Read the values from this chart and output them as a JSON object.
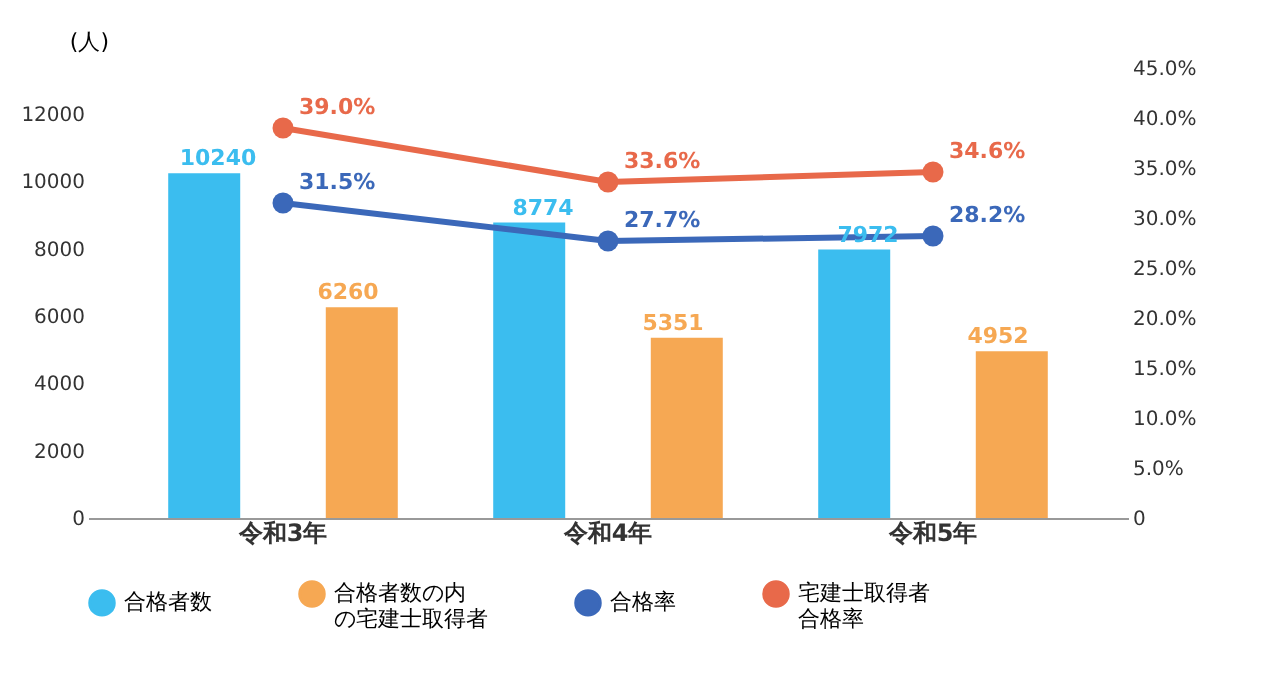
{
  "chart_data": {
    "type": "bar",
    "ylabel": "(人)",
    "categories": [
      "令和3年",
      "令和4年",
      "令和5年"
    ],
    "series": [
      {
        "name": "合格者数",
        "color": "#3bbdef",
        "values": [
          10240,
          8774,
          7972
        ]
      },
      {
        "name": "合格者数の内の宅建士取得者",
        "color": "#f6a853",
        "values": [
          6260,
          5351,
          4952
        ]
      },
      {
        "name": "合格率",
        "type": "line",
        "axis": "y2",
        "color": "#3b68b9",
        "values": [
          31.5,
          27.7,
          28.2
        ],
        "value_labels": [
          "31.5%",
          "27.7%",
          "28.2%"
        ]
      },
      {
        "name": "宅建士取得者合格率",
        "type": "line",
        "axis": "y2",
        "color": "#e8694a",
        "values": [
          39.0,
          33.6,
          34.6
        ],
        "value_labels": [
          "39.0%",
          "33.6%",
          "34.6%"
        ]
      }
    ],
    "ylim": [
      0,
      12000
    ],
    "yticks": [
      0,
      2000,
      4000,
      6000,
      8000,
      10000,
      12000
    ],
    "y2lim": [
      0,
      45
    ],
    "y2ticks": [
      {
        "value": 0,
        "label": "0"
      },
      {
        "value": 5,
        "label": "5.0%"
      },
      {
        "value": 10,
        "label": "10.0%"
      },
      {
        "value": 15,
        "label": "15.0%"
      },
      {
        "value": 20,
        "label": "20.0%"
      },
      {
        "value": 25,
        "label": "25.0%"
      },
      {
        "value": 30,
        "label": "30.0%"
      },
      {
        "value": 35,
        "label": "35.0%"
      },
      {
        "value": 40,
        "label": "40.0%"
      },
      {
        "value": 45,
        "label": "45.0%"
      }
    ],
    "data_labels": true,
    "marker": "circle",
    "legend": "bottom",
    "grid": false
  }
}
